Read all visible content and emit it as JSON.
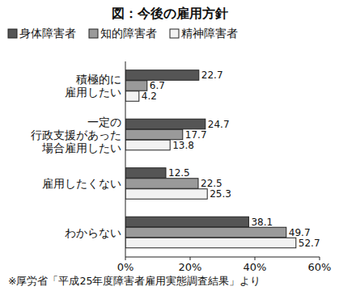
{
  "chart_data": {
    "type": "bar",
    "orientation": "horizontal",
    "title": "図：今後の雇用方針",
    "categories": [
      "積極的に\n雇用したい",
      "一定の\n行政支援があった\n場合雇用したい",
      "雇用したくない",
      "わからない"
    ],
    "series": [
      {
        "name": "身体障害者",
        "color": "#555555",
        "values": [
          22.7,
          24.7,
          12.5,
          38.1
        ]
      },
      {
        "name": "知的障害者",
        "color": "#9a9a9a",
        "values": [
          6.7,
          17.7,
          22.5,
          49.7
        ]
      },
      {
        "name": "精神障害者",
        "color": "#f2f2f2",
        "values": [
          4.2,
          13.8,
          25.3,
          52.7
        ]
      }
    ],
    "xlim": [
      0,
      60
    ],
    "xticks": [
      {
        "value": 0,
        "label": "0%"
      },
      {
        "value": 20,
        "label": "20%"
      },
      {
        "value": 40,
        "label": "40%"
      },
      {
        "value": 60,
        "label": "60%"
      }
    ],
    "grid": false,
    "legend": "top",
    "data_labels": true,
    "annotations": [
      "※厚労省「平成25年度障害者雇用実態調査結果」より"
    ]
  }
}
